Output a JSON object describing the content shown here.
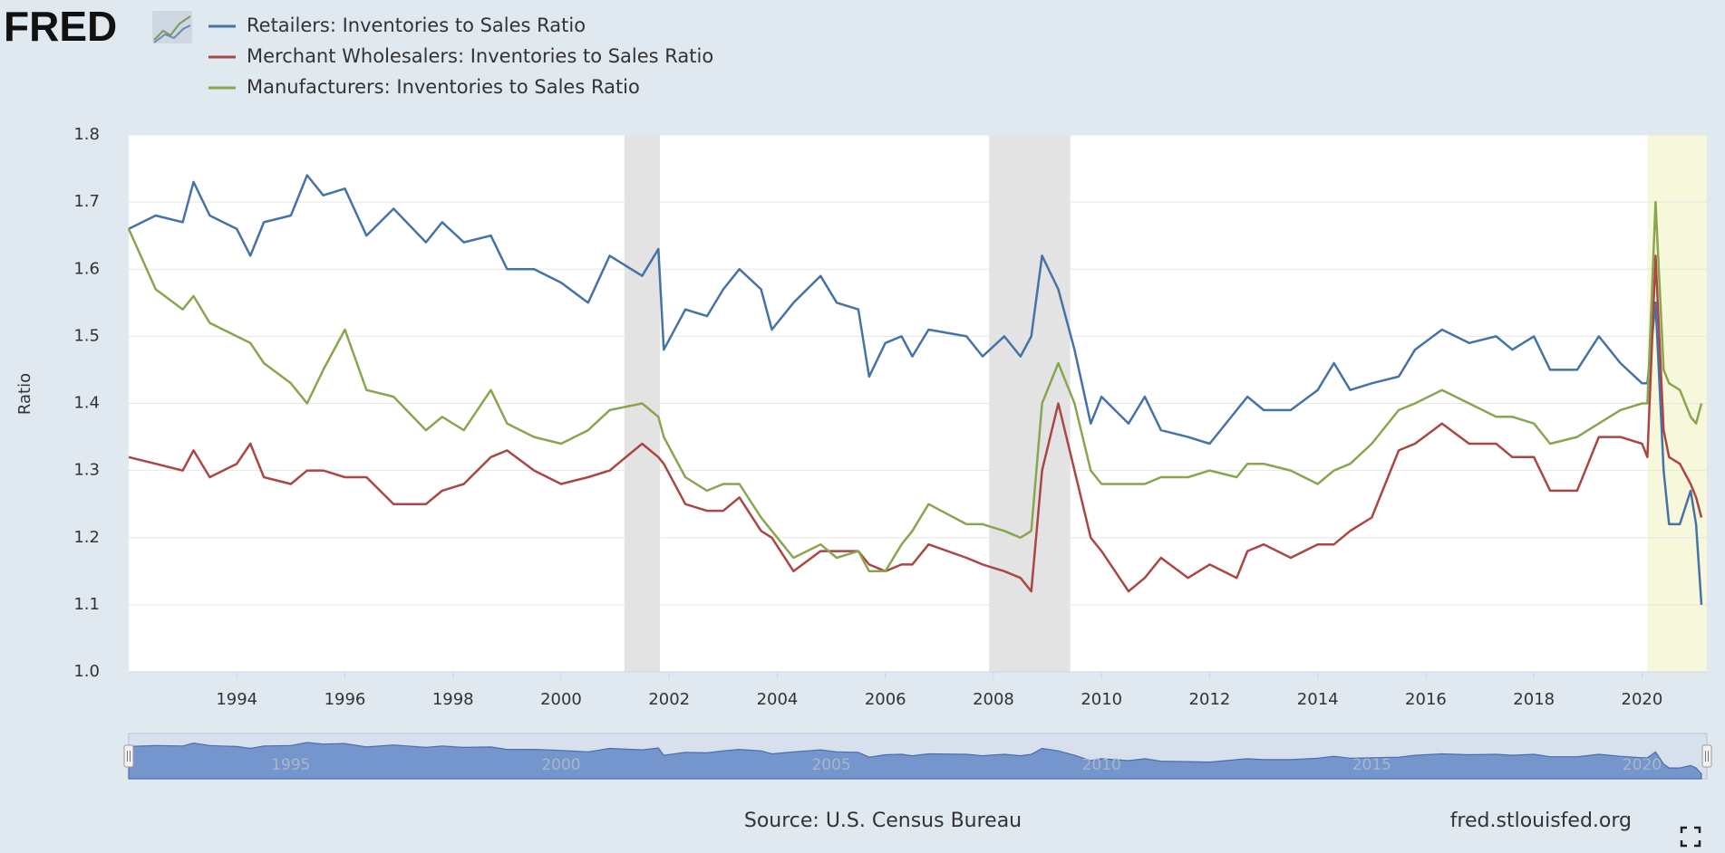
{
  "chart_data": {
    "type": "line",
    "logo": "FRED",
    "y_label": "Ratio",
    "source": "Source: U.S. Census Bureau",
    "site": "fred.stlouisfed.org",
    "x": [
      1992,
      1992.5,
      1993,
      1993.2,
      1993.5,
      1994,
      1994.25,
      1994.5,
      1995,
      1995.3,
      1995.6,
      1996,
      1996.4,
      1996.9,
      1997.5,
      1997.8,
      1998.2,
      1998.7,
      1999,
      1999.5,
      2000,
      2000.5,
      2000.9,
      2001.5,
      2001.8,
      2001.9,
      2002.3,
      2002.7,
      2003,
      2003.3,
      2003.7,
      2003.9,
      2004.3,
      2004.8,
      2005.1,
      2005.5,
      2005.7,
      2006,
      2006.3,
      2006.5,
      2006.8,
      2007.5,
      2007.8,
      2008.2,
      2008.5,
      2008.7,
      2008.9,
      2009.2,
      2009.5,
      2009.8,
      2010,
      2010.5,
      2010.8,
      2011.1,
      2011.6,
      2012,
      2012.5,
      2012.7,
      2013,
      2013.5,
      2014,
      2014.3,
      2014.6,
      2015,
      2015.5,
      2015.8,
      2016.3,
      2016.8,
      2017.3,
      2017.6,
      2018,
      2018.3,
      2018.8,
      2019.2,
      2019.6,
      2020,
      2020.1,
      2020.25,
      2020.4,
      2020.5,
      2020.7,
      2020.9,
      2021,
      2021.1
    ],
    "series": [
      {
        "name": "Retailers: Inventories to Sales Ratio",
        "color": "#4572a7",
        "values": [
          1.66,
          1.68,
          1.67,
          1.73,
          1.68,
          1.66,
          1.62,
          1.67,
          1.68,
          1.74,
          1.71,
          1.72,
          1.65,
          1.69,
          1.64,
          1.67,
          1.64,
          1.65,
          1.6,
          1.6,
          1.58,
          1.55,
          1.62,
          1.59,
          1.63,
          1.48,
          1.54,
          1.53,
          1.57,
          1.6,
          1.57,
          1.51,
          1.55,
          1.59,
          1.55,
          1.54,
          1.44,
          1.49,
          1.5,
          1.47,
          1.51,
          1.5,
          1.47,
          1.5,
          1.47,
          1.5,
          1.62,
          1.57,
          1.48,
          1.37,
          1.41,
          1.37,
          1.41,
          1.36,
          1.35,
          1.34,
          1.39,
          1.41,
          1.39,
          1.39,
          1.42,
          1.46,
          1.42,
          1.43,
          1.44,
          1.48,
          1.51,
          1.49,
          1.5,
          1.48,
          1.5,
          1.45,
          1.45,
          1.5,
          1.46,
          1.43,
          1.43,
          1.55,
          1.3,
          1.22,
          1.22,
          1.27,
          1.22,
          1.1
        ]
      },
      {
        "name": "Merchant Wholesalers: Inventories to Sales Ratio",
        "color": "#aa4643",
        "values": [
          1.32,
          1.31,
          1.3,
          1.33,
          1.29,
          1.31,
          1.34,
          1.29,
          1.28,
          1.3,
          1.3,
          1.29,
          1.29,
          1.25,
          1.25,
          1.27,
          1.28,
          1.32,
          1.33,
          1.3,
          1.28,
          1.29,
          1.3,
          1.34,
          1.32,
          1.31,
          1.25,
          1.24,
          1.24,
          1.26,
          1.21,
          1.2,
          1.15,
          1.18,
          1.18,
          1.18,
          1.16,
          1.15,
          1.16,
          1.16,
          1.19,
          1.17,
          1.16,
          1.15,
          1.14,
          1.12,
          1.3,
          1.4,
          1.3,
          1.2,
          1.18,
          1.12,
          1.14,
          1.17,
          1.14,
          1.16,
          1.14,
          1.18,
          1.19,
          1.17,
          1.19,
          1.19,
          1.21,
          1.23,
          1.33,
          1.34,
          1.37,
          1.34,
          1.34,
          1.32,
          1.32,
          1.27,
          1.27,
          1.35,
          1.35,
          1.34,
          1.32,
          1.62,
          1.36,
          1.32,
          1.31,
          1.28,
          1.26,
          1.23
        ]
      },
      {
        "name": "Manufacturers: Inventories to Sales Ratio",
        "color": "#89a54e",
        "values": [
          1.66,
          1.57,
          1.54,
          1.56,
          1.52,
          1.5,
          1.49,
          1.46,
          1.43,
          1.4,
          1.45,
          1.51,
          1.42,
          1.41,
          1.36,
          1.38,
          1.36,
          1.42,
          1.37,
          1.35,
          1.34,
          1.36,
          1.39,
          1.4,
          1.38,
          1.35,
          1.29,
          1.27,
          1.28,
          1.28,
          1.23,
          1.21,
          1.17,
          1.19,
          1.17,
          1.18,
          1.15,
          1.15,
          1.19,
          1.21,
          1.25,
          1.22,
          1.22,
          1.21,
          1.2,
          1.21,
          1.4,
          1.46,
          1.4,
          1.3,
          1.28,
          1.28,
          1.28,
          1.29,
          1.29,
          1.3,
          1.29,
          1.31,
          1.31,
          1.3,
          1.28,
          1.3,
          1.31,
          1.34,
          1.39,
          1.4,
          1.42,
          1.4,
          1.38,
          1.38,
          1.37,
          1.34,
          1.35,
          1.37,
          1.39,
          1.4,
          1.4,
          1.7,
          1.45,
          1.43,
          1.42,
          1.38,
          1.37,
          1.4
        ]
      }
    ],
    "recessions": [
      [
        2001.17,
        2001.83
      ],
      [
        2007.92,
        2009.42
      ]
    ],
    "recession_color": "#e3e3e3",
    "highlight": [
      2020.1,
      2021.2
    ],
    "highlight_color": "#f7f7dc",
    "xlim": [
      1992,
      2021.2
    ],
    "xticks": [
      1994,
      1996,
      1998,
      2000,
      2002,
      2004,
      2006,
      2008,
      2010,
      2012,
      2014,
      2016,
      2018,
      2020
    ],
    "ylim": [
      1.0,
      1.8
    ],
    "yticks": [
      {
        "value": 1.0,
        "label": "1.0"
      },
      1.1,
      1.2,
      1.3,
      1.4,
      1.5,
      1.6,
      1.7,
      1.8
    ],
    "grid": true,
    "navigator_xticks": [
      1995,
      2000,
      2005,
      2010,
      2015,
      2020
    ]
  }
}
